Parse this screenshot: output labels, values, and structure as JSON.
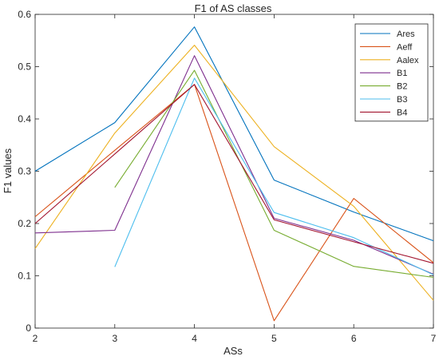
{
  "chart_data": {
    "type": "line",
    "title": "F1 of AS classes",
    "xlabel": "ASs",
    "ylabel": "F1 values",
    "xlim": [
      2,
      7
    ],
    "ylim": [
      0,
      0.6
    ],
    "xticks": [
      "2",
      "3",
      "4",
      "5",
      "6",
      "7"
    ],
    "yticks": [
      "0",
      "0.1",
      "0.2",
      "0.3",
      "0.4",
      "0.5",
      "0.6"
    ],
    "grid": false,
    "legend_position": "top-right",
    "series": [
      {
        "name": "Ares",
        "color": "#0072BD",
        "x": [
          2,
          3,
          4,
          5,
          6,
          7
        ],
        "y": [
          0.3,
          0.393,
          0.576,
          0.283,
          0.222,
          0.167
        ]
      },
      {
        "name": "Aeff",
        "color": "#D95319",
        "x": [
          2,
          3,
          4,
          5,
          6,
          7
        ],
        "y": [
          0.213,
          0.34,
          0.466,
          0.014,
          0.248,
          0.125
        ]
      },
      {
        "name": "Aalex",
        "color": "#EDB120",
        "x": [
          2,
          3,
          4,
          5,
          6,
          7
        ],
        "y": [
          0.152,
          0.373,
          0.541,
          0.347,
          0.233,
          0.053
        ]
      },
      {
        "name": "B1",
        "color": "#7E2F8E",
        "x": [
          2,
          3,
          4,
          5,
          6,
          7
        ],
        "y": [
          0.182,
          0.187,
          0.521,
          0.21,
          0.168,
          0.103
        ]
      },
      {
        "name": "B2",
        "color": "#77AC30",
        "x": [
          3,
          4,
          5,
          6,
          7
        ],
        "y": [
          0.269,
          0.493,
          0.187,
          0.118,
          0.097
        ]
      },
      {
        "name": "B3",
        "color": "#4DBEEE",
        "x": [
          3,
          4,
          5,
          6,
          7
        ],
        "y": [
          0.117,
          0.478,
          0.221,
          0.173,
          0.102
        ]
      },
      {
        "name": "B4",
        "color": "#A2142F",
        "x": [
          2,
          3,
          4,
          5,
          6,
          7
        ],
        "y": [
          0.2,
          0.333,
          0.466,
          0.207,
          0.165,
          0.124
        ]
      }
    ]
  }
}
